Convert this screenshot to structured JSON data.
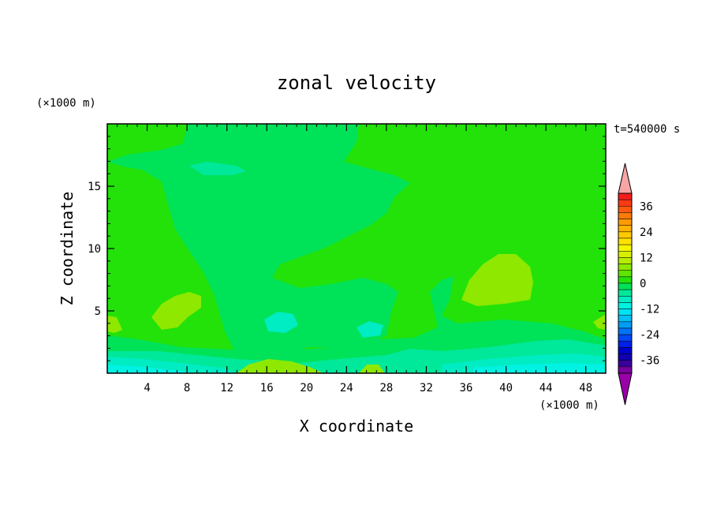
{
  "chart_data": {
    "type": "heatmap",
    "title": "zonal velocity",
    "xlabel": "X coordinate",
    "ylabel": "Z coordinate",
    "x_unit": "(×1000 m)",
    "y_unit": "(×1000 m)",
    "time_label": "t=540000 s",
    "xlim": [
      0,
      50
    ],
    "ylim": [
      0,
      20
    ],
    "x_ticks": [
      4,
      8,
      12,
      16,
      20,
      24,
      28,
      32,
      36,
      40,
      44,
      48
    ],
    "y_ticks": [
      5,
      10,
      15
    ],
    "colorbar": {
      "ticks": [
        36,
        24,
        12,
        0,
        -12,
        -24,
        -36
      ],
      "levels": [
        42,
        39,
        36,
        33,
        30,
        27,
        24,
        21,
        18,
        15,
        12,
        9,
        6,
        3,
        0,
        -3,
        -6,
        -9,
        -12,
        -15,
        -18,
        -21,
        -24,
        -27,
        -30,
        -33,
        -36,
        -39,
        -42
      ],
      "colors": [
        "#f7a5a5",
        "#f81d1d",
        "#fb3a14",
        "#fe5a0e",
        "#ff7a08",
        "#ff9a03",
        "#ffb200",
        "#ffca00",
        "#ffe200",
        "#f5f500",
        "#d8f000",
        "#b6ec00",
        "#8ee800",
        "#5ee500",
        "#22e20a",
        "#00e258",
        "#00e89a",
        "#00ecc2",
        "#00f2e2",
        "#00e2f4",
        "#00c0f5",
        "#009cf6",
        "#0074f6",
        "#0048f4",
        "#0020e6",
        "#0000cc",
        "#1000b0",
        "#3a009c",
        "#7a009e",
        "#9a00a8"
      ]
    }
  }
}
